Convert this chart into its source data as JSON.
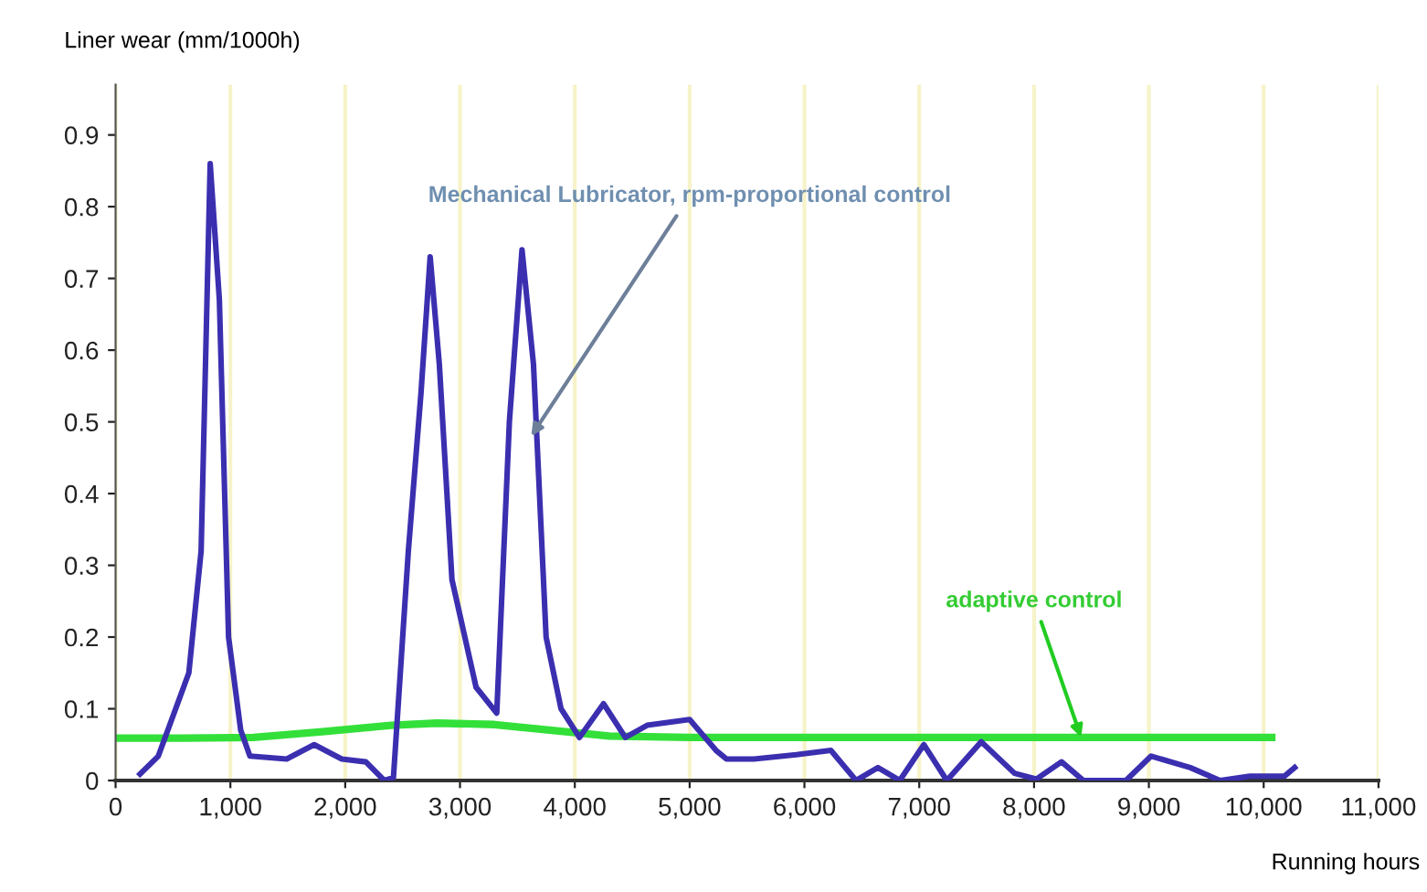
{
  "chart_data": {
    "type": "line",
    "xlabel": "Running hours",
    "ylabel": "Liner wear (mm/1000h)",
    "xlim": [
      0,
      11000
    ],
    "ylim": [
      0,
      0.97
    ],
    "xticks": [
      0,
      {
        "value": 1000,
        "label": "1,000"
      },
      {
        "value": 2000,
        "label": "2,000"
      },
      {
        "value": 3000,
        "label": "3,000"
      },
      {
        "value": 4000,
        "label": "4,000"
      },
      {
        "value": 5000,
        "label": "5,000"
      },
      {
        "value": 6000,
        "label": "6,000"
      },
      {
        "value": 7000,
        "label": "7,000"
      },
      {
        "value": 8000,
        "label": "8,000"
      },
      {
        "value": 9000,
        "label": "9,000"
      },
      {
        "value": 10000,
        "label": "10,000"
      },
      {
        "value": 11000,
        "label": "11,000"
      }
    ],
    "yticks": [
      0,
      0.1,
      0.2,
      0.3,
      0.4,
      0.5,
      0.6,
      0.7,
      0.8,
      0.9
    ],
    "grid": "x",
    "marker": "none",
    "line_style": "solid",
    "legend": false,
    "series": [
      {
        "color": "#3b2fb0",
        "x": [
          213,
          372,
          638,
          745,
          824,
          904,
          984,
          1090,
          1170,
          1490,
          1730,
          1970,
          2180,
          2340,
          2420,
          2550,
          2660,
          2740,
          2820,
          2930,
          3140,
          3320,
          3430,
          3540,
          3640,
          3750,
          3880,
          4040,
          4250,
          4440,
          4630,
          5000,
          5230,
          5320,
          5560,
          5930,
          6230,
          6450,
          6640,
          6830,
          7040,
          7240,
          7540,
          7830,
          8020,
          8240,
          8430,
          8620,
          8800,
          9020,
          9360,
          9620,
          9880,
          10180,
          10270
        ],
        "values": [
          0.009,
          0.034,
          0.15,
          0.32,
          0.86,
          0.67,
          0.2,
          0.07,
          0.034,
          0.03,
          0.05,
          0.03,
          0.026,
          0,
          0.004,
          0.32,
          0.54,
          0.73,
          0.58,
          0.28,
          0.13,
          0.094,
          0.5,
          0.74,
          0.58,
          0.2,
          0.1,
          0.06,
          0.107,
          0.06,
          0.077,
          0.085,
          0.042,
          0.03,
          0.03,
          0.036,
          0.042,
          0,
          0.018,
          0,
          0.05,
          0,
          0.054,
          0.01,
          0.002,
          0.026,
          0,
          0,
          0,
          0.034,
          0.018,
          0,
          0.006,
          0.006,
          0.018
        ]
      },
      {
        "color": "#33e03a",
        "x": [
          0,
          600,
          1200,
          1800,
          2400,
          2800,
          3300,
          3800,
          4300,
          5000,
          6000,
          7000,
          8000,
          9000,
          10070
        ],
        "values": [
          0.059,
          0.059,
          0.06,
          0.068,
          0.077,
          0.08,
          0.078,
          0.07,
          0.062,
          0.06,
          0.06,
          0.06,
          0.06,
          0.06,
          0.06
        ]
      }
    ],
    "annotations": [
      {
        "text": "Mechanical Lubricator, rpm-proportional control",
        "x": 3620,
        "y": 0.48
      },
      {
        "text": "adaptive control",
        "x": 8410,
        "y": 0.06
      }
    ]
  }
}
